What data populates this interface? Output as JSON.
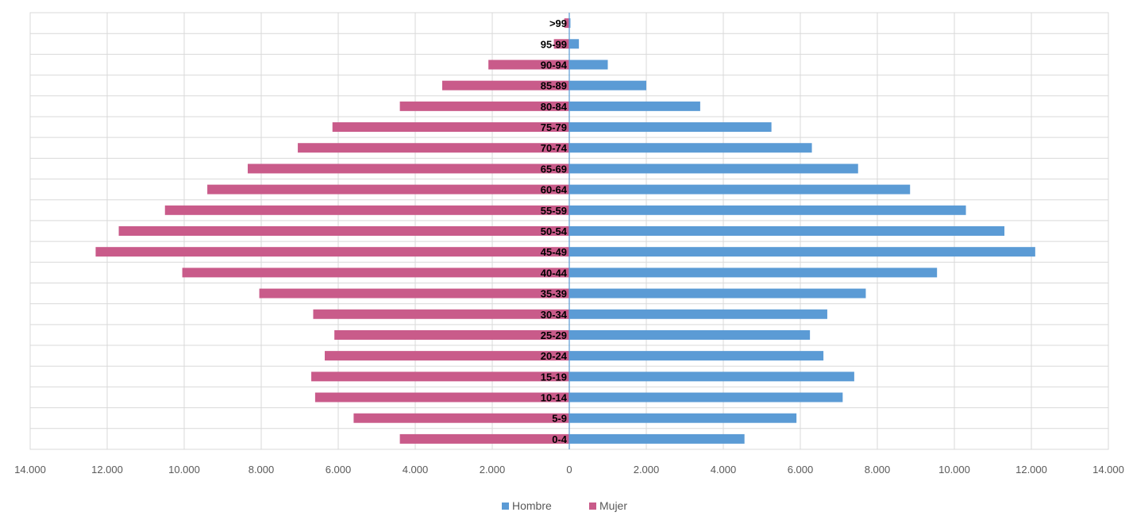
{
  "chart_data": {
    "type": "bar",
    "orientation": "horizontal",
    "categories": [
      ">99",
      "95-99",
      "90-94",
      "85-89",
      "80-84",
      "75-79",
      "70-74",
      "65-69",
      "60-64",
      "55-59",
      "50-54",
      "45-49",
      "40-44",
      "35-39",
      "30-34",
      "25-29",
      "20-24",
      "15-19",
      "10-14",
      "5-9",
      "0-4"
    ],
    "series": [
      {
        "name": "Hombre",
        "color": "#5b9bd5",
        "values": [
          30,
          250,
          1000,
          2000,
          3400,
          5250,
          6300,
          7500,
          8850,
          10300,
          11300,
          12100,
          9550,
          7700,
          6700,
          6250,
          6600,
          7400,
          7100,
          5900,
          4550
        ]
      },
      {
        "name": "Mujer",
        "color": "#c95b8a",
        "values": [
          130,
          400,
          2100,
          3300,
          4400,
          6150,
          7050,
          8350,
          9400,
          10500,
          11700,
          12300,
          10050,
          8050,
          6650,
          6100,
          6350,
          6700,
          6600,
          5600,
          4400
        ]
      }
    ],
    "xlim": [
      -14000,
      14000
    ],
    "xticks": [
      -14000,
      -12000,
      -10000,
      -8000,
      -6000,
      -4000,
      -2000,
      0,
      2000,
      4000,
      6000,
      8000,
      10000,
      12000,
      14000
    ],
    "xtick_labels": [
      "14.000",
      "12.000",
      "10.000",
      "8.000",
      "6.000",
      "4.000",
      "2.000",
      "0",
      "2.000",
      "4.000",
      "6.000",
      "8.000",
      "10.000",
      "12.000",
      "14.000"
    ],
    "grid": true,
    "legend": "bottom",
    "title": "",
    "xlabel": "",
    "ylabel": ""
  }
}
